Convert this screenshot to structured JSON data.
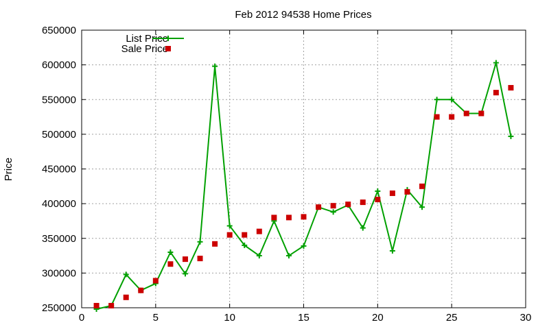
{
  "chart_data": {
    "type": "line",
    "title": "Feb 2012 94538 Home Prices",
    "xlabel": "",
    "ylabel": "Price",
    "xlim": [
      0,
      30
    ],
    "ylim": [
      250000,
      650000
    ],
    "x_ticks": [
      "0",
      "5",
      "10",
      "15",
      "20",
      "25",
      "30"
    ],
    "y_ticks": [
      "250000",
      "300000",
      "350000",
      "400000",
      "450000",
      "500000",
      "550000",
      "600000",
      "650000"
    ],
    "grid": true,
    "legend_position": "top-left",
    "x": [
      1,
      2,
      3,
      4,
      5,
      6,
      7,
      8,
      9,
      10,
      11,
      12,
      13,
      14,
      15,
      16,
      17,
      18,
      19,
      20,
      21,
      22,
      23,
      24,
      25,
      26,
      27,
      28,
      29
    ],
    "series": [
      {
        "name": "List Price",
        "style": "line-cross",
        "color": "#00a000",
        "values": [
          248000,
          253000,
          298000,
          275000,
          285000,
          330000,
          299000,
          345000,
          598000,
          368000,
          340000,
          325000,
          375000,
          325000,
          339000,
          395000,
          388000,
          398000,
          365000,
          418000,
          332000,
          420000,
          395000,
          550000,
          550000,
          530000,
          530000,
          603000,
          497000
        ]
      },
      {
        "name": "Sale Price",
        "style": "square",
        "color": "#cc0000",
        "values": [
          253000,
          253000,
          265000,
          275000,
          289000,
          313000,
          320000,
          321000,
          342000,
          355000,
          355000,
          360000,
          380000,
          380000,
          381000,
          395000,
          397000,
          399000,
          402000,
          406000,
          415000,
          417000,
          425000,
          525000,
          525000,
          530000,
          530000,
          560000,
          567000
        ]
      }
    ]
  }
}
